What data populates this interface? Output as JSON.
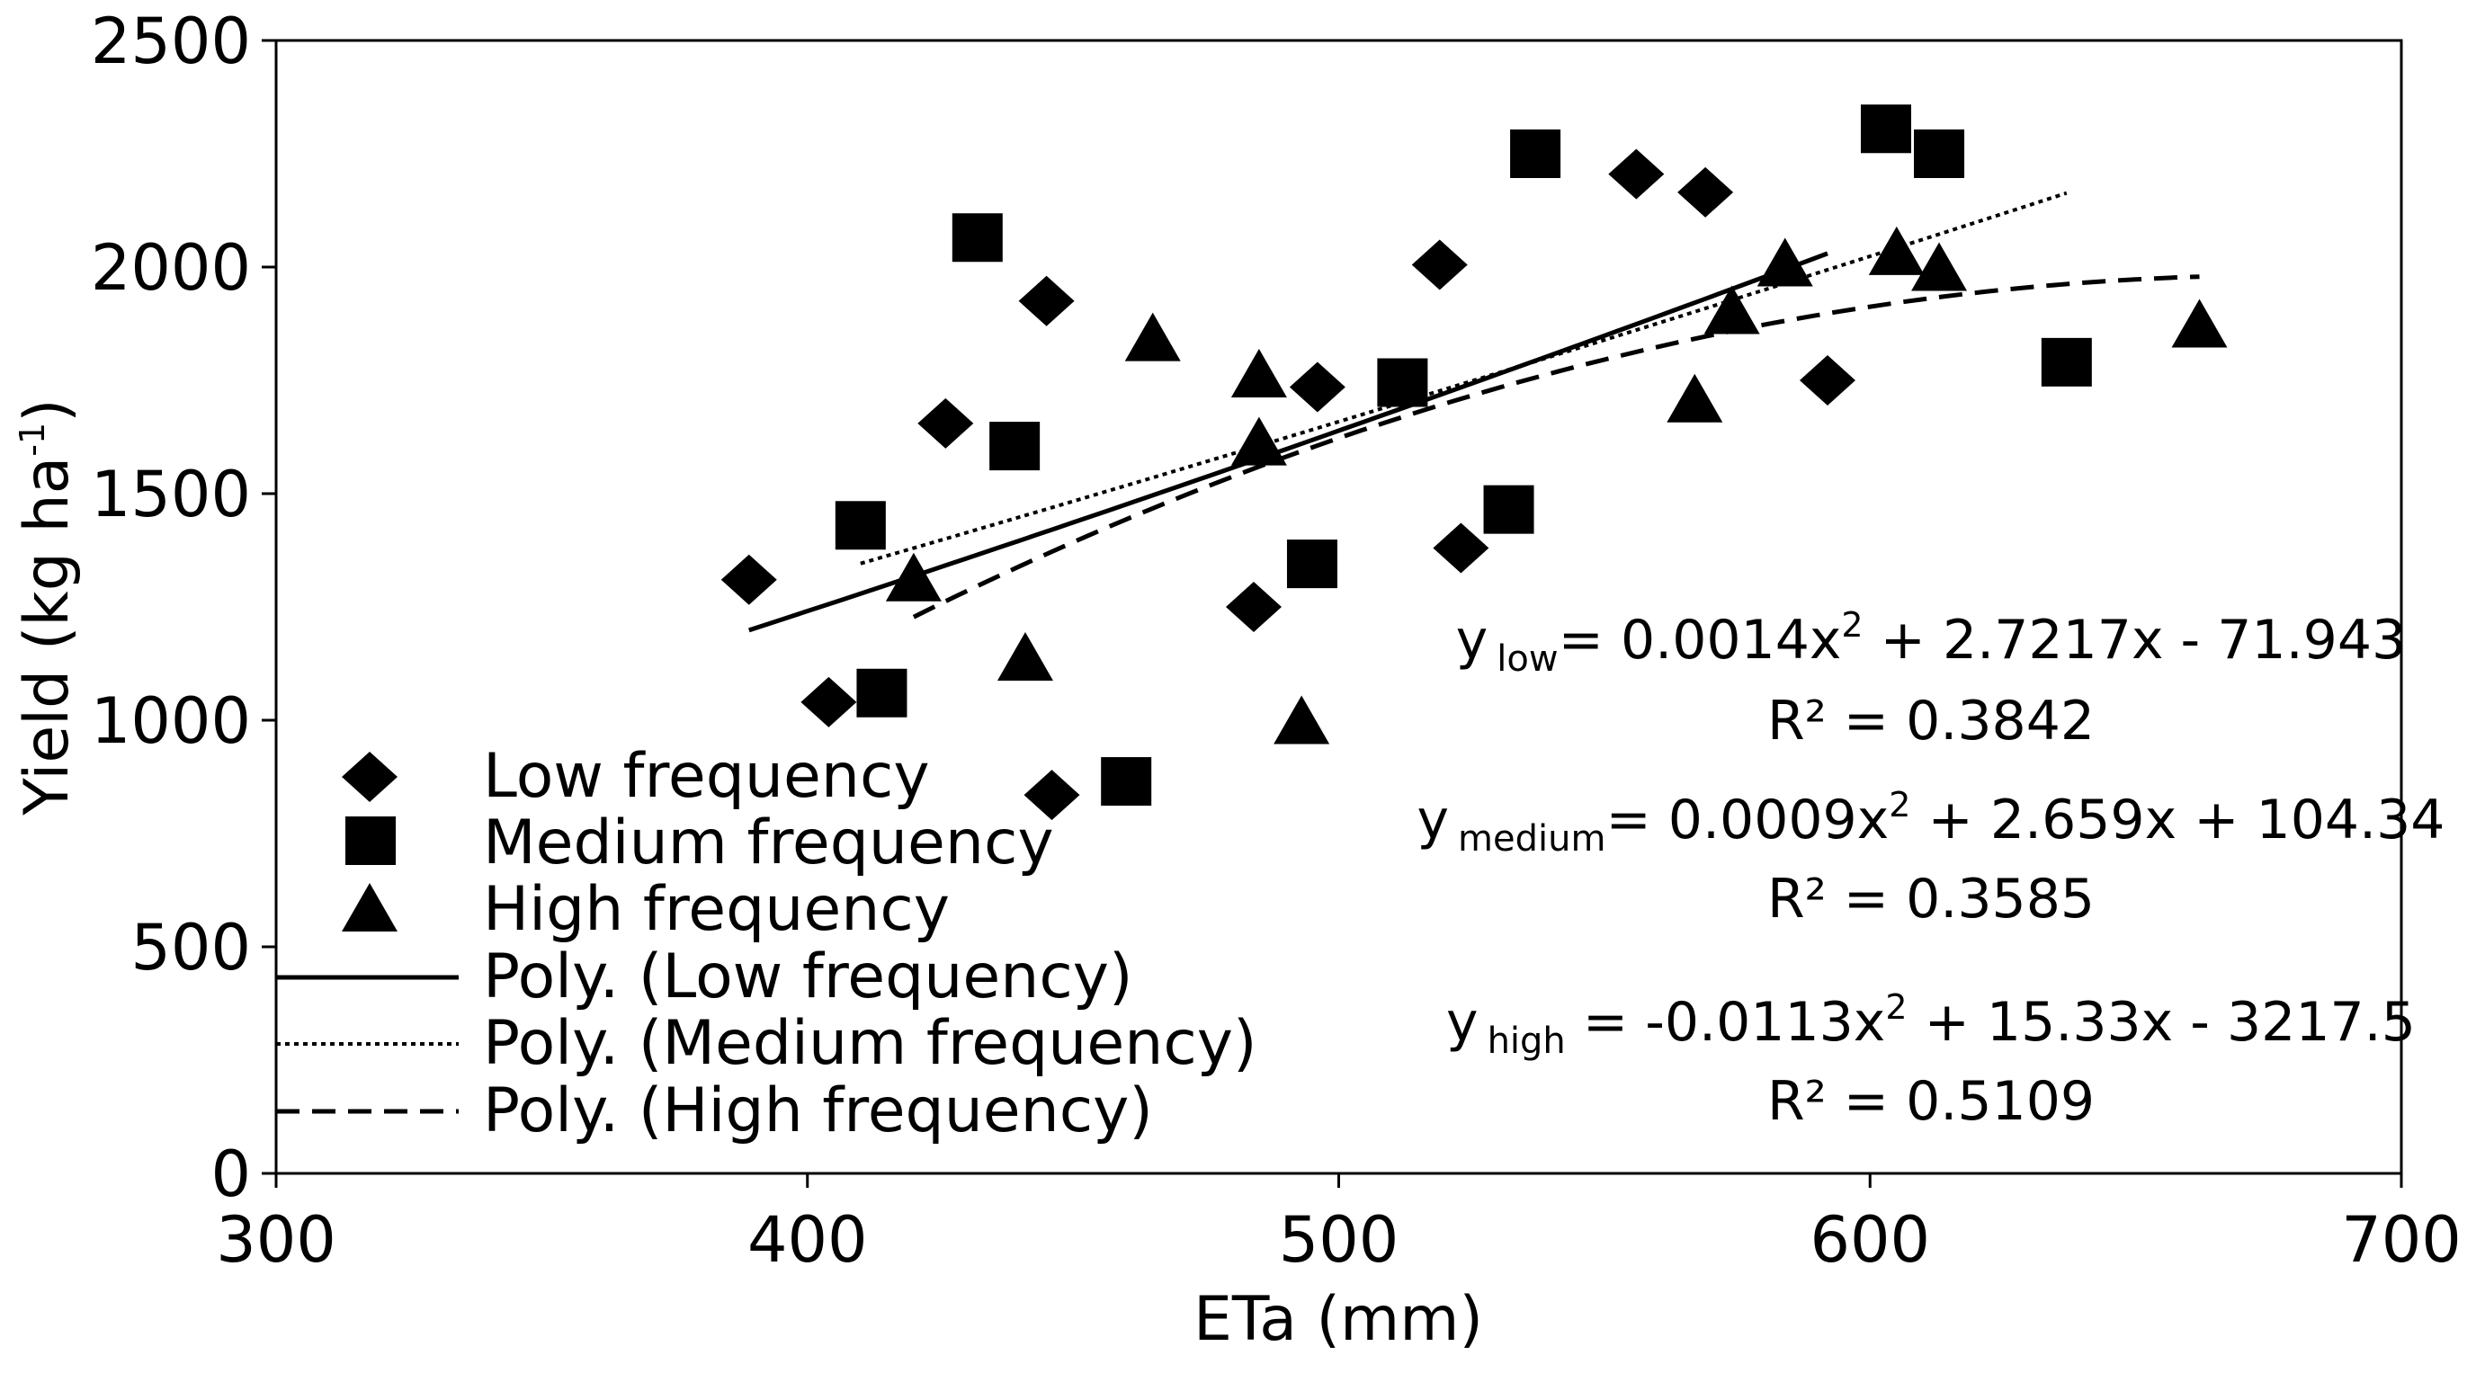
{
  "chart_data": {
    "type": "scatter",
    "title": "",
    "xlabel": "ETa (mm)",
    "ylabel": "Yield (kg ha",
    "ylabel_sup": "-1",
    "ylabel_close": ")",
    "xlim": [
      300,
      700
    ],
    "ylim": [
      0,
      2500
    ],
    "x_ticks": [
      300,
      400,
      500,
      600,
      700
    ],
    "y_ticks": [
      0,
      500,
      1000,
      1500,
      2000,
      2500
    ],
    "grid": false,
    "legend_position": "bottom-left",
    "series": [
      {
        "name": "Low frequency",
        "marker": "diamond",
        "points": [
          [
            389,
            1310
          ],
          [
            404,
            1040
          ],
          [
            426,
            1655
          ],
          [
            445,
            1925
          ],
          [
            446,
            835
          ],
          [
            484,
            1250
          ],
          [
            496,
            1735
          ],
          [
            519,
            2005
          ],
          [
            523,
            1380
          ],
          [
            556,
            2205
          ],
          [
            569,
            2165
          ],
          [
            592,
            1750
          ]
        ]
      },
      {
        "name": "Medium frequency",
        "marker": "square",
        "points": [
          [
            410,
            1430
          ],
          [
            414,
            1060
          ],
          [
            432,
            2065
          ],
          [
            439,
            1605
          ],
          [
            460,
            865
          ],
          [
            495,
            1345
          ],
          [
            512,
            1745
          ],
          [
            532,
            1465
          ],
          [
            537,
            2250
          ],
          [
            603,
            2305
          ],
          [
            613,
            2250
          ],
          [
            637,
            1790
          ]
        ]
      },
      {
        "name": "High frequency",
        "marker": "triangle",
        "points": [
          [
            420,
            1300
          ],
          [
            441,
            1125
          ],
          [
            465,
            1830
          ],
          [
            485,
            1750
          ],
          [
            485,
            1600
          ],
          [
            493,
            985
          ],
          [
            567,
            1695
          ],
          [
            574,
            1890
          ],
          [
            584,
            1995
          ],
          [
            605,
            2020
          ],
          [
            613,
            1985
          ],
          [
            662,
            1860
          ]
        ]
      }
    ],
    "trendlines": [
      {
        "name": "Poly. (Low frequency)",
        "style": "solid",
        "coeffs": [
          0.0014,
          2.7217,
          -71.943
        ],
        "x_range": [
          389,
          592
        ]
      },
      {
        "name": "Poly. (Medium frequency)",
        "style": "dotted",
        "coeffs": [
          0.0009,
          2.659,
          104.34
        ],
        "x_range": [
          410,
          637
        ]
      },
      {
        "name": "Poly. (High frequency)",
        "style": "dashed",
        "coeffs": [
          -0.0113,
          15.33,
          -3217.5
        ],
        "x_range": [
          420,
          662
        ]
      }
    ],
    "annotations": [
      {
        "y_label": "y",
        "subscript": "low",
        "equation": "= 0.0014x",
        "sup": "2",
        "rest": " + 2.7217x - 71.943",
        "r2": "R² = 0.3842"
      },
      {
        "y_label": "y",
        "subscript": "medium",
        "equation": "= 0.0009x",
        "sup": "2",
        "rest": " + 2.659x + 104.34",
        "r2": "R² = 0.3585"
      },
      {
        "y_label": "y",
        "subscript": "high",
        "equation": " = -0.0113x",
        "sup": "2",
        "rest": " + 15.33x - 3217.5",
        "r2": "R² = 0.5109"
      }
    ]
  }
}
